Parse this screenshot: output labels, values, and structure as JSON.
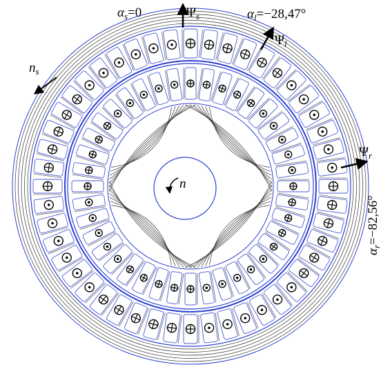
{
  "labels": {
    "alpha_s": {
      "main": "α",
      "sub": "s",
      "after": "=0"
    },
    "psi_s": {
      "main": "Ψ",
      "sub": "s"
    },
    "alpha_l": {
      "main": "α",
      "sub": "l",
      "after": "=−28,47°"
    },
    "psi_l": {
      "main": "Ψ",
      "sub": "l"
    },
    "n_s": {
      "main": "n",
      "sub": "s"
    },
    "psi_r": {
      "main": "Ψ",
      "sub": "r"
    },
    "alpha_r": {
      "main": "α",
      "sub": "r",
      "after": "=−82,56°"
    },
    "n": {
      "main": "n"
    }
  }
}
